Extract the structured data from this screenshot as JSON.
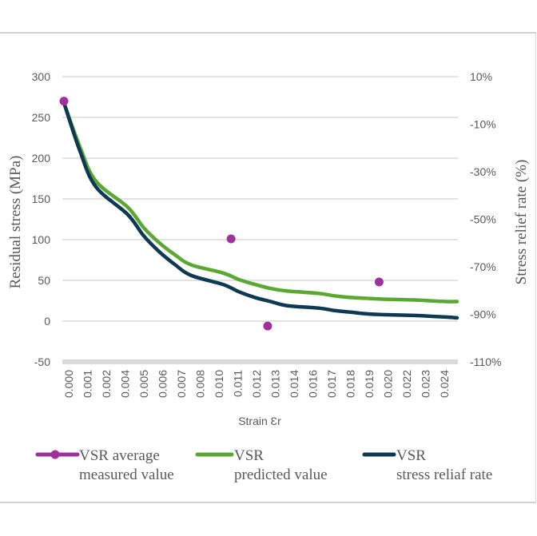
{
  "chart_data": {
    "type": "line",
    "title": "",
    "xlabel": "Strain Ɛr",
    "ylabel": "Residual stress (MPa)",
    "y2label": "Stress relief rate (%)",
    "ylim": [
      -50,
      300
    ],
    "yticks": [
      "300",
      "250",
      "200",
      "150",
      "100",
      "50",
      "0",
      "-50"
    ],
    "y2lim": [
      -110,
      10
    ],
    "y2ticks": [
      "10%",
      "-10%",
      "-30%",
      "-50%",
      "-70%",
      "-90%",
      "-110%"
    ],
    "categories": [
      "0.000",
      "0.001",
      "0.002",
      "0.004",
      "0.005",
      "0.006",
      "0.007",
      "0.008",
      "0.010",
      "0.011",
      "0.012",
      "0.013",
      "0.014",
      "0.016",
      "0.017",
      "0.018",
      "0.019",
      "0.020",
      "0.022",
      "0.023",
      "0.024"
    ],
    "grid": true,
    "legend_position": "bottom",
    "series": [
      {
        "name": "VSR average measured value",
        "type": "scatter",
        "color": "#a0309c",
        "points": [
          {
            "x": 0.0,
            "y": 270
          },
          {
            "x": 0.0105,
            "y": 101
          },
          {
            "x": 0.0128,
            "y": -6
          },
          {
            "x": 0.0198,
            "y": 48
          }
        ]
      },
      {
        "name": "VSR predicted value",
        "type": "line",
        "color": "#5aa832",
        "x": [
          0.0,
          0.001,
          0.002,
          0.004,
          0.005,
          0.006,
          0.007,
          0.008,
          0.01,
          0.011,
          0.012,
          0.013,
          0.014,
          0.016,
          0.017,
          0.018,
          0.019,
          0.02,
          0.022,
          0.023,
          0.024,
          0.0247
        ],
        "values": [
          268,
          214,
          172,
          140,
          115,
          96,
          81,
          69,
          59,
          51,
          45,
          40,
          37,
          34,
          31,
          29,
          28,
          27,
          26,
          25,
          24,
          24
        ]
      },
      {
        "name": "VSR stress reliaf rate",
        "type": "line",
        "color": "#0d3a52",
        "x": [
          0.0,
          0.001,
          0.002,
          0.004,
          0.005,
          0.006,
          0.007,
          0.008,
          0.01,
          0.011,
          0.012,
          0.013,
          0.014,
          0.016,
          0.017,
          0.018,
          0.019,
          0.02,
          0.022,
          0.023,
          0.024,
          0.0247
        ],
        "values": [
          268,
          209,
          165,
          131,
          105,
          85,
          69,
          56,
          45,
          36,
          29,
          24,
          19,
          16,
          13,
          11,
          9,
          8,
          7,
          6,
          5,
          4
        ]
      }
    ]
  },
  "legend": [
    {
      "line1": "VSR average",
      "line2": "measured value"
    },
    {
      "line1": "VSR",
      "line2": "predicted value"
    },
    {
      "line1": "VSR",
      "line2": "stress reliaf rate"
    }
  ]
}
